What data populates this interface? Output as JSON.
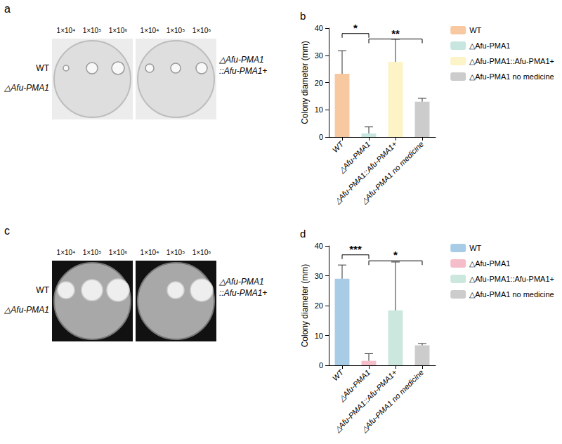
{
  "photo_panels": [
    {
      "letter": "a",
      "concentrations": [
        "1×10⁴",
        "1×10⁵",
        "1×10⁶"
      ],
      "left_plate_rows": [
        "WT",
        "△Afu-PMA1"
      ],
      "right_plate_label": "△Afu-PMA1::Afu-PMA1+"
    },
    {
      "letter": "c",
      "concentrations": [
        "1×10⁴",
        "1×10⁵",
        "1×10⁶"
      ],
      "left_plate_rows": [
        "WT",
        "△Afu-PMA1"
      ],
      "right_plate_label": "△Afu-PMA1::Afu-PMA1+"
    }
  ],
  "chart_data": [
    {
      "type": "bar",
      "letter": "b",
      "categories": [
        "WT",
        "△Afu-PMA1",
        "△Afu-PMA1::Afu-PMA1+",
        "△Afu-PMA1 no medicine"
      ],
      "values": [
        23.2,
        1.3,
        27.6,
        13.0
      ],
      "errors": [
        8.5,
        2.4,
        8.3,
        1.2
      ],
      "colors": [
        "#f8c9a0",
        "#c6e6df",
        "#fcf4c6",
        "#cccccc"
      ],
      "y_label": "Colony diameter (mm)",
      "ylim": [
        0,
        40
      ],
      "yticks": [
        0,
        10,
        20,
        30,
        40
      ],
      "grid": false,
      "legend": "right",
      "significance": [
        {
          "from": "WT",
          "to": "△Afu-PMA1",
          "y": 38,
          "label": "*"
        },
        {
          "from": "△Afu-PMA1",
          "to": "△Afu-PMA1 no medicine",
          "y": 36,
          "label": "**"
        }
      ]
    },
    {
      "type": "bar",
      "letter": "d",
      "categories": [
        "WT",
        "△Afu-PMA1",
        "△Afu-PMA1::Afu-PMA1+",
        "△Afu-PMA1 no medicine"
      ],
      "values": [
        29.0,
        1.5,
        18.4,
        6.7
      ],
      "errors": [
        4.6,
        2.4,
        16.2,
        0.6
      ],
      "colors": [
        "#a9cce6",
        "#f5bdc9",
        "#cce8de",
        "#cccccc"
      ],
      "y_label": "Colony diameter (mm)",
      "ylim": [
        0,
        40
      ],
      "yticks": [
        0,
        10,
        20,
        30,
        40
      ],
      "grid": false,
      "legend": "right",
      "significance": [
        {
          "from": "WT",
          "to": "△Afu-PMA1",
          "y": 37,
          "label": "***"
        },
        {
          "from": "△Afu-PMA1",
          "to": "△Afu-PMA1 no medicine",
          "y": 35,
          "label": "*"
        }
      ]
    }
  ]
}
